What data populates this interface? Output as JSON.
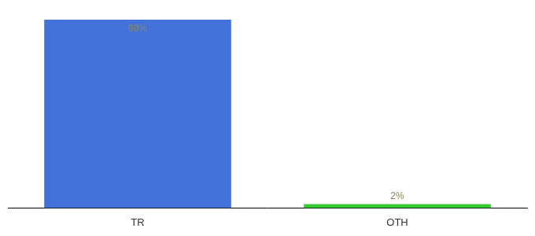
{
  "chart_data": {
    "type": "bar",
    "categories": [
      "TR",
      "OTH"
    ],
    "values": [
      98,
      2
    ],
    "value_labels": [
      "98%",
      "2%"
    ],
    "colors": [
      "#4472db",
      "#33cc33"
    ],
    "data_labels": true,
    "ylim": [
      0,
      100
    ],
    "tick_labels": "x",
    "grid": false
  }
}
